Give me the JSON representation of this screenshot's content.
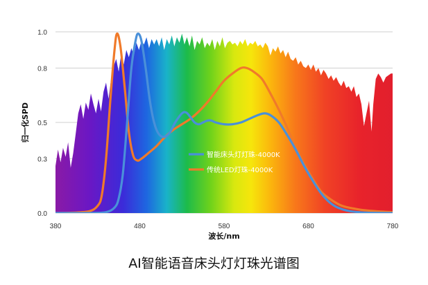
{
  "chart_data": {
    "type": "line",
    "caption": "AI智能语音床头灯灯珠光谱图",
    "xlabel": "波长/nm",
    "ylabel": "归一化SPD",
    "xlim": [
      380,
      780
    ],
    "ylim": [
      0,
      1.0
    ],
    "xticks": [
      380,
      480,
      580,
      680,
      780
    ],
    "yticks": [
      0.0,
      0.3,
      0.5,
      0.8,
      1.0
    ],
    "ytick_labels": [
      "0.0",
      "0.3",
      "0.5",
      "0.8",
      "1.0"
    ],
    "grid": true,
    "legend_position": "center",
    "background": "visible-spectrum rainbow fill under a noisy daylight envelope",
    "series": [
      {
        "name": "智能床头灯灯珠-4000K",
        "color": "#4a90d9",
        "points": [
          [
            380,
            0.0
          ],
          [
            420,
            0.0
          ],
          [
            440,
            0.005
          ],
          [
            450,
            0.03
          ],
          [
            455,
            0.08
          ],
          [
            460,
            0.22
          ],
          [
            465,
            0.5
          ],
          [
            470,
            0.8
          ],
          [
            475,
            0.95
          ],
          [
            478,
            0.99
          ],
          [
            482,
            0.95
          ],
          [
            487,
            0.8
          ],
          [
            492,
            0.62
          ],
          [
            497,
            0.5
          ],
          [
            502,
            0.44
          ],
          [
            508,
            0.42
          ],
          [
            515,
            0.44
          ],
          [
            522,
            0.5
          ],
          [
            530,
            0.55
          ],
          [
            535,
            0.555
          ],
          [
            540,
            0.53
          ],
          [
            545,
            0.5
          ],
          [
            550,
            0.49
          ],
          [
            555,
            0.5
          ],
          [
            560,
            0.51
          ],
          [
            565,
            0.51
          ],
          [
            570,
            0.5
          ],
          [
            580,
            0.49
          ],
          [
            590,
            0.49
          ],
          [
            600,
            0.5
          ],
          [
            610,
            0.52
          ],
          [
            620,
            0.54
          ],
          [
            628,
            0.55
          ],
          [
            635,
            0.54
          ],
          [
            645,
            0.5
          ],
          [
            655,
            0.43
          ],
          [
            665,
            0.35
          ],
          [
            675,
            0.26
          ],
          [
            685,
            0.18
          ],
          [
            695,
            0.11
          ],
          [
            705,
            0.06
          ],
          [
            715,
            0.03
          ],
          [
            730,
            0.01
          ],
          [
            750,
            0.002
          ],
          [
            780,
            0.0
          ]
        ]
      },
      {
        "name": "传统LED灯珠-4000K",
        "color": "#f07a2a",
        "points": [
          [
            380,
            0.0
          ],
          [
            400,
            0.002
          ],
          [
            420,
            0.01
          ],
          [
            430,
            0.04
          ],
          [
            435,
            0.1
          ],
          [
            440,
            0.3
          ],
          [
            445,
            0.62
          ],
          [
            450,
            0.9
          ],
          [
            453,
            0.99
          ],
          [
            457,
            0.92
          ],
          [
            462,
            0.7
          ],
          [
            467,
            0.45
          ],
          [
            472,
            0.32
          ],
          [
            477,
            0.29
          ],
          [
            482,
            0.3
          ],
          [
            490,
            0.33
          ],
          [
            500,
            0.37
          ],
          [
            510,
            0.42
          ],
          [
            520,
            0.46
          ],
          [
            530,
            0.49
          ],
          [
            540,
            0.52
          ],
          [
            550,
            0.56
          ],
          [
            560,
            0.61
          ],
          [
            570,
            0.67
          ],
          [
            580,
            0.73
          ],
          [
            590,
            0.77
          ],
          [
            600,
            0.8
          ],
          [
            607,
            0.8
          ],
          [
            615,
            0.78
          ],
          [
            625,
            0.74
          ],
          [
            635,
            0.66
          ],
          [
            645,
            0.57
          ],
          [
            655,
            0.47
          ],
          [
            665,
            0.36
          ],
          [
            675,
            0.27
          ],
          [
            685,
            0.19
          ],
          [
            695,
            0.12
          ],
          [
            705,
            0.08
          ],
          [
            720,
            0.04
          ],
          [
            740,
            0.02
          ],
          [
            760,
            0.01
          ],
          [
            780,
            0.005
          ]
        ]
      }
    ],
    "background_envelope": [
      [
        380,
        0.26
      ],
      [
        383,
        0.35
      ],
      [
        386,
        0.28
      ],
      [
        389,
        0.36
      ],
      [
        392,
        0.31
      ],
      [
        395,
        0.39
      ],
      [
        398,
        0.25
      ],
      [
        401,
        0.33
      ],
      [
        404,
        0.44
      ],
      [
        407,
        0.55
      ],
      [
        410,
        0.6
      ],
      [
        413,
        0.52
      ],
      [
        416,
        0.61
      ],
      [
        419,
        0.57
      ],
      [
        422,
        0.66
      ],
      [
        425,
        0.6
      ],
      [
        428,
        0.55
      ],
      [
        431,
        0.63
      ],
      [
        434,
        0.56
      ],
      [
        437,
        0.67
      ],
      [
        440,
        0.72
      ],
      [
        443,
        0.63
      ],
      [
        446,
        0.74
      ],
      [
        449,
        0.81
      ],
      [
        452,
        0.85
      ],
      [
        455,
        0.78
      ],
      [
        458,
        0.88
      ],
      [
        461,
        0.82
      ],
      [
        464,
        0.9
      ],
      [
        467,
        0.86
      ],
      [
        470,
        0.91
      ],
      [
        473,
        0.87
      ],
      [
        476,
        0.94
      ],
      [
        479,
        0.9
      ],
      [
        482,
        0.95
      ],
      [
        485,
        0.93
      ],
      [
        488,
        0.97
      ],
      [
        491,
        0.91
      ],
      [
        494,
        0.96
      ],
      [
        497,
        0.93
      ],
      [
        500,
        0.96
      ],
      [
        503,
        0.92
      ],
      [
        506,
        0.97
      ],
      [
        509,
        0.9
      ],
      [
        512,
        0.96
      ],
      [
        515,
        0.93
      ],
      [
        518,
        0.98
      ],
      [
        521,
        0.92
      ],
      [
        524,
        0.97
      ],
      [
        527,
        0.94
      ],
      [
        530,
        0.99
      ],
      [
        533,
        0.93
      ],
      [
        536,
        0.97
      ],
      [
        539,
        0.92
      ],
      [
        542,
        0.98
      ],
      [
        545,
        0.9
      ],
      [
        548,
        0.95
      ],
      [
        551,
        0.93
      ],
      [
        554,
        0.97
      ],
      [
        557,
        0.91
      ],
      [
        560,
        0.94
      ],
      [
        563,
        0.92
      ],
      [
        566,
        0.96
      ],
      [
        569,
        0.9
      ],
      [
        572,
        0.95
      ],
      [
        575,
        0.92
      ],
      [
        578,
        0.97
      ],
      [
        581,
        0.91
      ],
      [
        584,
        0.94
      ],
      [
        587,
        0.95
      ],
      [
        590,
        0.93
      ],
      [
        593,
        0.94
      ],
      [
        596,
        0.92
      ],
      [
        599,
        0.95
      ],
      [
        602,
        0.93
      ],
      [
        605,
        0.96
      ],
      [
        608,
        0.92
      ],
      [
        611,
        0.94
      ],
      [
        614,
        0.93
      ],
      [
        617,
        0.95
      ],
      [
        620,
        0.92
      ],
      [
        623,
        0.93
      ],
      [
        626,
        0.91
      ],
      [
        629,
        0.94
      ],
      [
        632,
        0.92
      ],
      [
        635,
        0.87
      ],
      [
        638,
        0.91
      ],
      [
        641,
        0.89
      ],
      [
        644,
        0.92
      ],
      [
        647,
        0.88
      ],
      [
        650,
        0.9
      ],
      [
        653,
        0.86
      ],
      [
        656,
        0.89
      ],
      [
        659,
        0.85
      ],
      [
        662,
        0.84
      ],
      [
        665,
        0.86
      ],
      [
        668,
        0.82
      ],
      [
        671,
        0.84
      ],
      [
        674,
        0.81
      ],
      [
        677,
        0.8
      ],
      [
        680,
        0.82
      ],
      [
        683,
        0.79
      ],
      [
        686,
        0.82
      ],
      [
        689,
        0.78
      ],
      [
        692,
        0.8
      ],
      [
        695,
        0.76
      ],
      [
        698,
        0.79
      ],
      [
        701,
        0.77
      ],
      [
        704,
        0.74
      ],
      [
        707,
        0.76
      ],
      [
        710,
        0.73
      ],
      [
        713,
        0.75
      ],
      [
        716,
        0.72
      ],
      [
        719,
        0.7
      ],
      [
        722,
        0.73
      ],
      [
        725,
        0.69
      ],
      [
        728,
        0.7
      ],
      [
        731,
        0.67
      ],
      [
        734,
        0.7
      ],
      [
        737,
        0.64
      ],
      [
        740,
        0.66
      ],
      [
        743,
        0.6
      ],
      [
        746,
        0.48
      ],
      [
        749,
        0.55
      ],
      [
        752,
        0.62
      ],
      [
        755,
        0.45
      ],
      [
        757,
        0.6
      ],
      [
        760,
        0.74
      ],
      [
        763,
        0.77
      ],
      [
        766,
        0.75
      ],
      [
        769,
        0.72
      ],
      [
        772,
        0.75
      ],
      [
        775,
        0.76
      ],
      [
        778,
        0.77
      ],
      [
        780,
        0.77
      ]
    ]
  }
}
